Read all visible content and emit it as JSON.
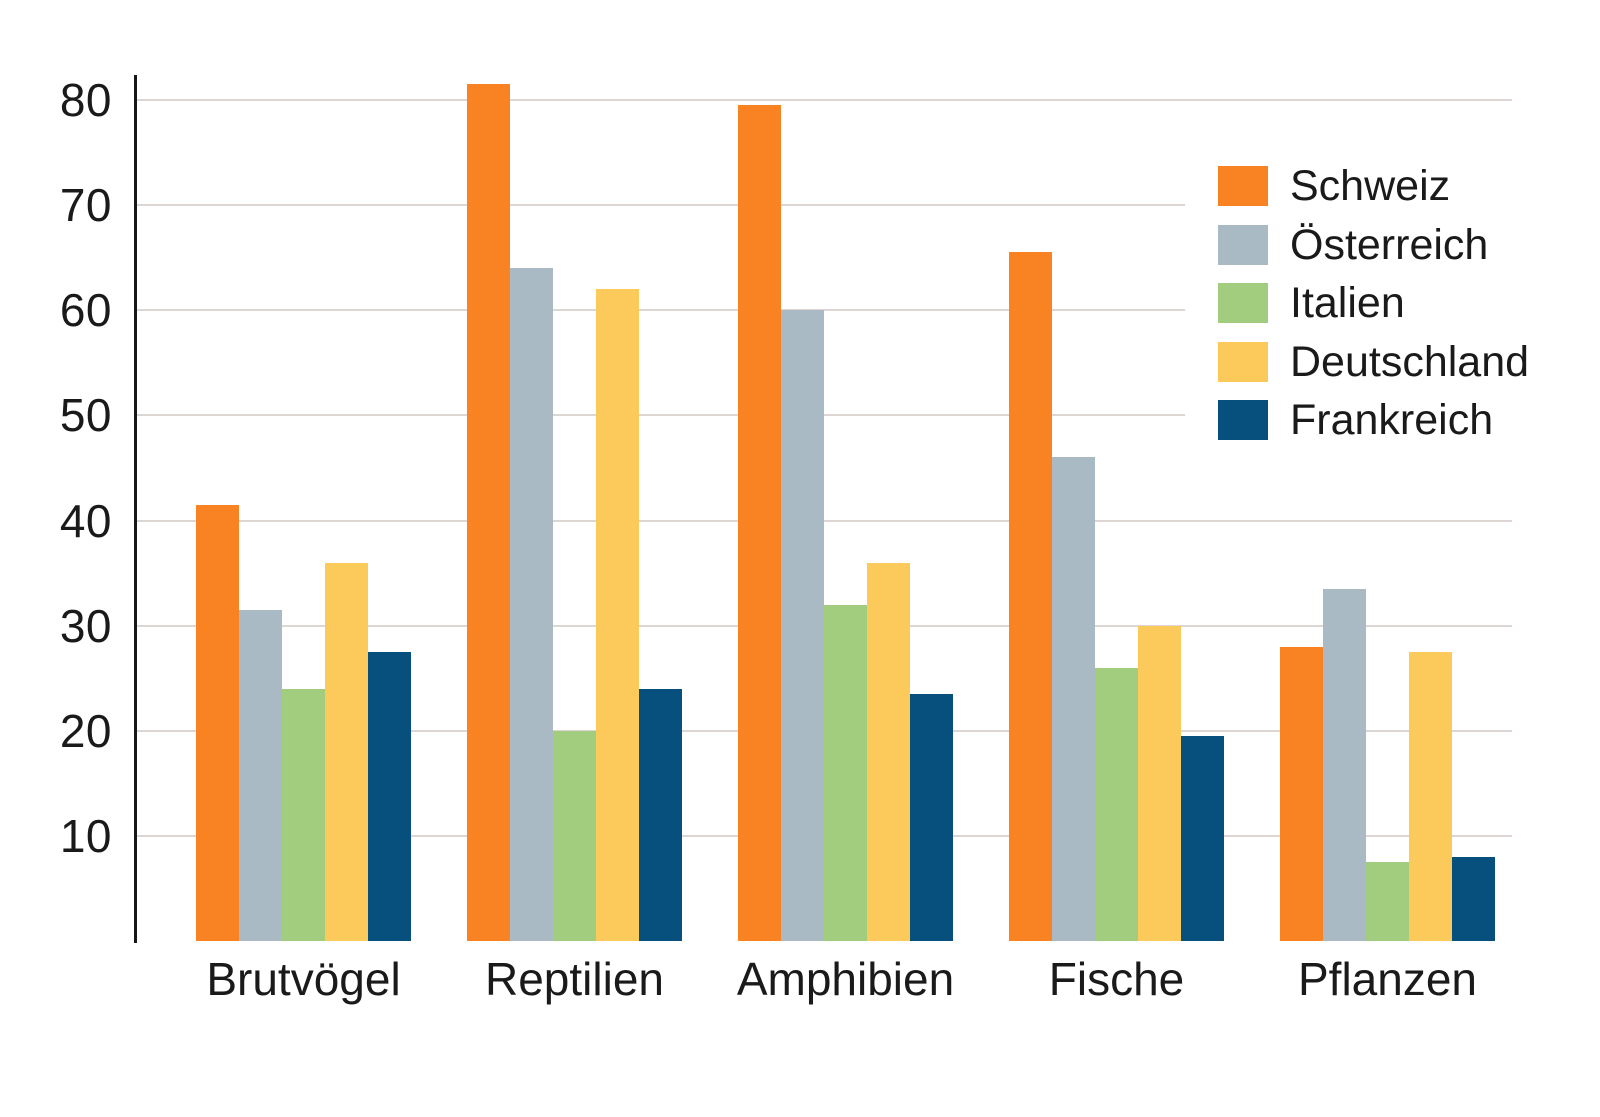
{
  "chart_data": {
    "type": "bar",
    "title": "",
    "categories": [
      "Brutvögel",
      "Reptilien",
      "Amphibien",
      "Fische",
      "Pflanzen"
    ],
    "series": [
      {
        "name": "Schweiz",
        "color": "#F98322",
        "values": [
          41.5,
          81.5,
          79.5,
          65.5,
          28.0
        ]
      },
      {
        "name": "Österreich",
        "color": "#A9BAC4",
        "values": [
          31.5,
          64.0,
          60.0,
          46.0,
          33.5
        ]
      },
      {
        "name": "Italien",
        "color": "#A2CC7E",
        "values": [
          24.0,
          20.0,
          32.0,
          26.0,
          7.5
        ]
      },
      {
        "name": "Deutschland",
        "color": "#FCC95B",
        "values": [
          36.0,
          62.0,
          36.0,
          30.0,
          27.5
        ]
      },
      {
        "name": "Frankreich",
        "color": "#07507E",
        "values": [
          27.5,
          24.0,
          23.5,
          19.5,
          8.0
        ]
      }
    ],
    "y_tick_labels": [
      "80",
      "70",
      "60",
      "50",
      "40",
      "30",
      "20",
      "10"
    ],
    "y_tick_values": [
      80,
      70,
      60,
      50,
      40,
      30,
      20,
      10
    ],
    "ylim": [
      0,
      85
    ],
    "xlabel": "",
    "ylabel": "",
    "grid": true,
    "legend_position": "top-right"
  },
  "colors": {
    "background": "#FFFFFF",
    "gridline": "#DDD6D2",
    "axis_line": "#161616",
    "text": "#1A1A1A"
  }
}
